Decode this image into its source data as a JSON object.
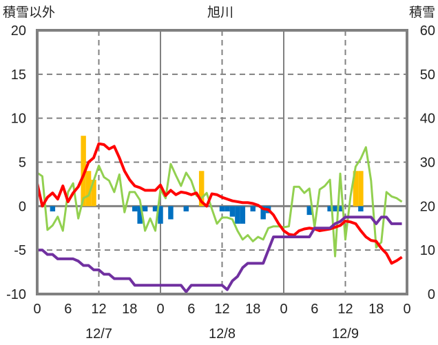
{
  "chart_data": {
    "type": "line",
    "title": "旭川",
    "ylabel_left": "積雪以外",
    "ylabel_right": "積雪",
    "ylim_left": [
      -10,
      20
    ],
    "ylim_right": [
      0,
      60
    ],
    "yticks_left": [
      "20",
      "15",
      "10",
      "5",
      "0",
      "-5",
      "-10"
    ],
    "yticks_right": [
      "60",
      "50",
      "40",
      "30",
      "20",
      "10",
      "0"
    ],
    "xlim_hours": [
      0,
      72
    ],
    "xticks": [
      "0",
      "6",
      "12",
      "18",
      "0",
      "6",
      "12",
      "18",
      "0",
      "6",
      "12",
      "18",
      "0"
    ],
    "date_labels": [
      "12/7",
      "12/8",
      "12/9"
    ],
    "grid": true,
    "colors": {
      "red": "#ff0000",
      "green": "#92d050",
      "purple": "#7030a0",
      "yellow": "#ffc000",
      "blue": "#0070c0",
      "axis": "#808080"
    },
    "series": {
      "red_line": [
        2.6,
        0,
        1,
        1.5,
        0.8,
        2.3,
        0.5,
        1.5,
        2.2,
        3.5,
        5,
        5.5,
        7.1,
        7,
        6.5,
        6.8,
        5.5,
        4,
        3,
        2.3,
        2.1,
        1.8,
        1.8,
        1.8,
        2.4,
        1.2,
        1.8,
        1.3,
        1.6,
        1.5,
        1.3,
        1.5,
        0.5,
        0,
        1.4,
        1.3,
        1.0,
        0.8,
        0.6,
        0.5,
        0.4,
        0.4,
        0.3,
        0.1,
        -0.3,
        -0.4,
        -1.0,
        -2.0,
        -2.8,
        -3.2,
        -3.3,
        -2.8,
        -2.6,
        -2.5,
        -2.6,
        -2.8,
        -2.7,
        -2.6,
        -2.4,
        -2.2,
        -1.7,
        -1.8,
        -2.0,
        -2.8,
        -3.5,
        -3.9,
        -4.0,
        -4.8,
        -5.4,
        -6.5,
        -6.2,
        -5.8
      ],
      "green_line": [
        3.8,
        3.4,
        -2.7,
        -2.2,
        -1.2,
        -2.8,
        1.6,
        2.6,
        -1.4,
        0.9,
        1.2,
        2.9,
        4.6,
        3.3,
        2.9,
        1.6,
        3.6,
        -0.7,
        1.6,
        1.6,
        0.7,
        -2.8,
        -1.4,
        -2.8,
        1.9,
        0.9,
        4.8,
        3.5,
        2.3,
        3.8,
        2.9,
        1.2,
        0.9,
        1.5,
        -0.3,
        -2.0,
        -1.3,
        -1.3,
        -1.5,
        -2.8,
        -3.8,
        -3.3,
        -4.0,
        -3.5,
        -3.8,
        -2.5,
        -2.3,
        -2.3,
        -2.4,
        -2.3,
        2.2,
        2.2,
        1.5,
        2.0,
        -2.4,
        1.9,
        2.3,
        3.0,
        -5.7,
        3.7,
        -3.8,
        1.1,
        4.5,
        5.4,
        6.7,
        2.9,
        -4.7,
        -4.1,
        1.6,
        1.1,
        0.9,
        0.5
      ],
      "purple_line_right_axis": [
        10,
        10,
        9,
        9,
        8,
        8,
        8,
        8,
        7.5,
        6.5,
        6.5,
        5.5,
        5.5,
        4.5,
        4.5,
        3.5,
        3.5,
        3.5,
        3.5,
        2,
        2,
        2,
        2,
        2,
        2,
        2,
        2,
        2,
        2,
        0.5,
        2,
        2,
        2,
        2,
        2,
        2,
        2,
        1,
        3,
        4,
        6,
        7,
        7,
        7,
        7,
        10,
        13,
        13,
        13,
        13,
        13,
        13,
        13,
        13,
        15,
        15,
        15,
        15,
        16,
        16.5,
        17.5,
        17.5,
        17.5,
        17.5,
        17.5,
        17.5,
        16,
        17.5,
        17.5,
        16,
        16,
        16
      ],
      "yellow_bars": {
        "9": 8,
        "10": 4,
        "11": 3,
        "32": 4,
        "62": 4,
        "63": 4
      },
      "blue_bars": {
        "3": -0.6,
        "19": -0.6,
        "20": -2,
        "21": -0.6,
        "23": -0.6,
        "24": -2,
        "26": -1.5,
        "29": -0.6,
        "36": -0.6,
        "37": -0.6,
        "38": -1.2,
        "39": -2,
        "40": -2,
        "42": -0.6,
        "44": -1.5,
        "45": -0.8,
        "53": -1.0,
        "57": -0.6,
        "58": -0.6,
        "59": -0.6,
        "63": -0.6
      }
    }
  }
}
